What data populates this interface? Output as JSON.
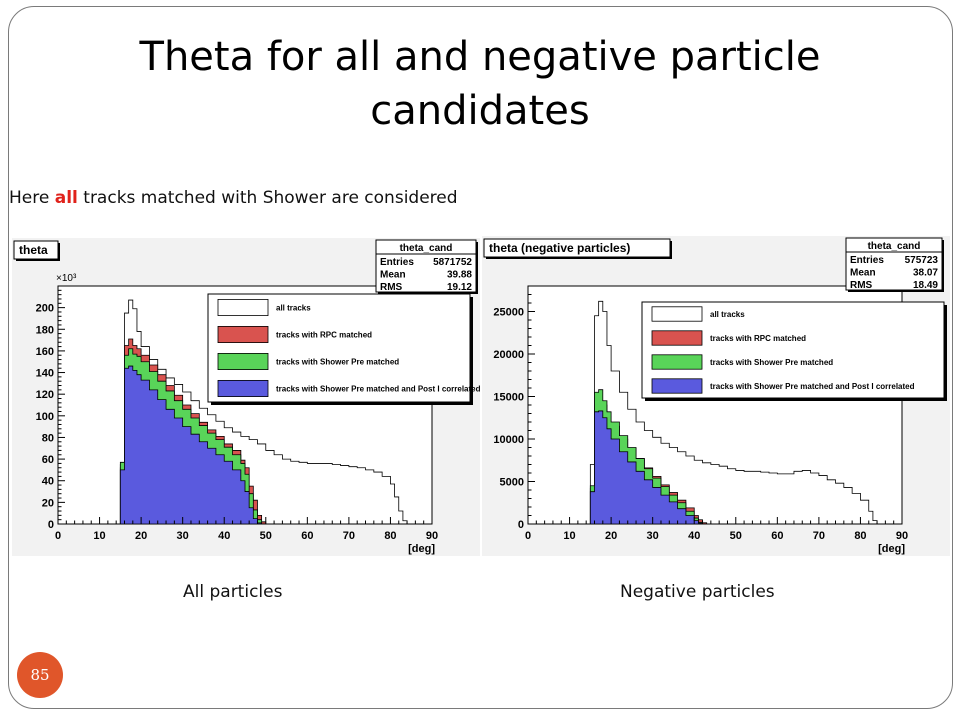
{
  "slide": {
    "title": "Theta for all and negative particle candidates",
    "subtitle_before": "Here ",
    "subtitle_highlight": "all",
    "subtitle_after": " tracks matched with Shower are considered",
    "slide_number": "85",
    "colors": {
      "accent": "#e0562a",
      "highlight": "#e0221b"
    }
  },
  "chart_data": [
    {
      "type": "area",
      "caption": "All particles",
      "title": "theta",
      "ymultiplier": "×10³",
      "xlabel": "[deg]",
      "ylabel": "",
      "xlim": [
        0,
        90
      ],
      "ylim": [
        0,
        220
      ],
      "xticks": [
        0,
        10,
        20,
        30,
        40,
        50,
        60,
        70,
        80,
        90
      ],
      "yticks": [
        0,
        20,
        40,
        60,
        80,
        100,
        120,
        140,
        160,
        180,
        200
      ],
      "stats": {
        "name": "theta_cand",
        "rows": [
          [
            "Entries",
            "5871752"
          ],
          [
            "Mean",
            "39.88"
          ],
          [
            "RMS",
            "19.12"
          ]
        ]
      },
      "series": [
        {
          "name": "all tracks",
          "color": "#ffffff",
          "points": [
            [
              0,
              0
            ],
            [
              15,
              0
            ],
            [
              15,
              52
            ],
            [
              16,
              52
            ],
            [
              16,
              195
            ],
            [
              17,
              207
            ],
            [
              18,
              199
            ],
            [
              19,
              178
            ],
            [
              20,
              164
            ],
            [
              22,
              152
            ],
            [
              24,
              143
            ],
            [
              26,
              135
            ],
            [
              28,
              129
            ],
            [
              30,
              122
            ],
            [
              32,
              114
            ],
            [
              34,
              107
            ],
            [
              36,
              101
            ],
            [
              38,
              95
            ],
            [
              40,
              89
            ],
            [
              42,
              85
            ],
            [
              44,
              81
            ],
            [
              46,
              78
            ],
            [
              48,
              74
            ],
            [
              50,
              68
            ],
            [
              52,
              64
            ],
            [
              54,
              60
            ],
            [
              56,
              58
            ],
            [
              58,
              57
            ],
            [
              60,
              56
            ],
            [
              62,
              56
            ],
            [
              64,
              56
            ],
            [
              66,
              55
            ],
            [
              68,
              54
            ],
            [
              70,
              53
            ],
            [
              72,
              52
            ],
            [
              74,
              50
            ],
            [
              76,
              48
            ],
            [
              78,
              44
            ],
            [
              80,
              37
            ],
            [
              81,
              25
            ],
            [
              82,
              12
            ],
            [
              83,
              3
            ],
            [
              84,
              0
            ],
            [
              90,
              0
            ]
          ]
        },
        {
          "name": "tracks with RPC matched",
          "color": "#d9534f",
          "points": [
            [
              0,
              0
            ],
            [
              15,
              0
            ],
            [
              15,
              55
            ],
            [
              16,
              55
            ],
            [
              16,
              165
            ],
            [
              17,
              171
            ],
            [
              18,
              165
            ],
            [
              19,
              162
            ],
            [
              20,
              156
            ],
            [
              22,
              147
            ],
            [
              24,
              138
            ],
            [
              26,
              128
            ],
            [
              28,
              119
            ],
            [
              30,
              110
            ],
            [
              32,
              102
            ],
            [
              34,
              94
            ],
            [
              36,
              87
            ],
            [
              38,
              81
            ],
            [
              40,
              74
            ],
            [
              42,
              68
            ],
            [
              44,
              59
            ],
            [
              45,
              52
            ],
            [
              46,
              35
            ],
            [
              47,
              22
            ],
            [
              48,
              8
            ],
            [
              49,
              2
            ],
            [
              50,
              0
            ],
            [
              90,
              0
            ]
          ]
        },
        {
          "name": "tracks with Shower Pre matched",
          "color": "#59d459",
          "points": [
            [
              0,
              0
            ],
            [
              15,
              0
            ],
            [
              15,
              57
            ],
            [
              16,
              57
            ],
            [
              16,
              156
            ],
            [
              17,
              162
            ],
            [
              18,
              157
            ],
            [
              19,
              155
            ],
            [
              20,
              150
            ],
            [
              22,
              141
            ],
            [
              24,
              132
            ],
            [
              26,
              123
            ],
            [
              28,
              114
            ],
            [
              30,
              106
            ],
            [
              32,
              98
            ],
            [
              34,
              91
            ],
            [
              36,
              84
            ],
            [
              38,
              78
            ],
            [
              40,
              71
            ],
            [
              42,
              64
            ],
            [
              44,
              56
            ],
            [
              45,
              46
            ],
            [
              46,
              28
            ],
            [
              47,
              13
            ],
            [
              48,
              4
            ],
            [
              49,
              0
            ],
            [
              90,
              0
            ]
          ]
        },
        {
          "name": "tracks with Shower Pre matched and Post I correlated",
          "color": "#5a5ade",
          "points": [
            [
              0,
              0
            ],
            [
              15,
              0
            ],
            [
              15,
              50
            ],
            [
              16,
              50
            ],
            [
              16,
              144
            ],
            [
              17,
              146
            ],
            [
              18,
              142
            ],
            [
              19,
              138
            ],
            [
              20,
              133
            ],
            [
              22,
              124
            ],
            [
              24,
              115
            ],
            [
              26,
              106
            ],
            [
              28,
              98
            ],
            [
              30,
              90
            ],
            [
              32,
              83
            ],
            [
              34,
              76
            ],
            [
              36,
              70
            ],
            [
              38,
              64
            ],
            [
              40,
              58
            ],
            [
              42,
              50
            ],
            [
              44,
              40
            ],
            [
              45,
              30
            ],
            [
              46,
              15
            ],
            [
              47,
              5
            ],
            [
              48,
              1
            ],
            [
              49,
              0
            ],
            [
              90,
              0
            ]
          ]
        }
      ]
    },
    {
      "type": "area",
      "caption": "Negative particles",
      "title": "theta (negative particles)",
      "ymultiplier": "",
      "xlabel": "[deg]",
      "ylabel": "",
      "xlim": [
        0,
        90
      ],
      "ylim": [
        0,
        28000
      ],
      "xticks": [
        0,
        10,
        20,
        30,
        40,
        50,
        60,
        70,
        80,
        90
      ],
      "yticks": [
        0,
        5000,
        10000,
        15000,
        20000,
        25000
      ],
      "stats": {
        "name": "theta_cand",
        "rows": [
          [
            "Entries",
            "575723"
          ],
          [
            "Mean",
            "38.07"
          ],
          [
            "RMS",
            "18.49"
          ]
        ]
      },
      "series": [
        {
          "name": "all tracks",
          "color": "#ffffff",
          "points": [
            [
              0,
              0
            ],
            [
              15,
              0
            ],
            [
              15,
              7000
            ],
            [
              16,
              7000
            ],
            [
              16,
              24500
            ],
            [
              17,
              26200
            ],
            [
              18,
              25000
            ],
            [
              19,
              21000
            ],
            [
              20,
              18000
            ],
            [
              22,
              15500
            ],
            [
              24,
              13500
            ],
            [
              26,
              12000
            ],
            [
              28,
              11000
            ],
            [
              30,
              10200
            ],
            [
              32,
              9500
            ],
            [
              34,
              9000
            ],
            [
              36,
              8500
            ],
            [
              38,
              8000
            ],
            [
              40,
              7500
            ],
            [
              42,
              7200
            ],
            [
              44,
              7000
            ],
            [
              46,
              6800
            ],
            [
              48,
              6500
            ],
            [
              50,
              6300
            ],
            [
              52,
              6200
            ],
            [
              54,
              6200
            ],
            [
              56,
              6100
            ],
            [
              58,
              6000
            ],
            [
              60,
              5900
            ],
            [
              62,
              5900
            ],
            [
              64,
              6200
            ],
            [
              66,
              6300
            ],
            [
              68,
              6000
            ],
            [
              70,
              5700
            ],
            [
              72,
              5200
            ],
            [
              74,
              4800
            ],
            [
              76,
              4300
            ],
            [
              78,
              3600
            ],
            [
              80,
              2800
            ],
            [
              82,
              1500
            ],
            [
              83,
              400
            ],
            [
              84,
              0
            ],
            [
              90,
              0
            ]
          ]
        },
        {
          "name": "tracks with RPC matched",
          "color": "#d9534f",
          "points": [
            [
              0,
              0
            ],
            [
              15,
              0
            ],
            [
              15,
              4200
            ],
            [
              16,
              4200
            ],
            [
              16,
              14000
            ],
            [
              17,
              14500
            ],
            [
              18,
              14000
            ],
            [
              19,
              12800
            ],
            [
              20,
              11500
            ],
            [
              22,
              10000
            ],
            [
              24,
              8900
            ],
            [
              26,
              7700
            ],
            [
              28,
              6600
            ],
            [
              30,
              5600
            ],
            [
              32,
              4600
            ],
            [
              34,
              3700
            ],
            [
              36,
              2800
            ],
            [
              38,
              1900
            ],
            [
              40,
              1000
            ],
            [
              41,
              500
            ],
            [
              42,
              150
            ],
            [
              43,
              0
            ],
            [
              90,
              0
            ]
          ]
        },
        {
          "name": "tracks with Shower Pre matched",
          "color": "#59d459",
          "points": [
            [
              0,
              0
            ],
            [
              15,
              0
            ],
            [
              15,
              4500
            ],
            [
              16,
              4500
            ],
            [
              16,
              15500
            ],
            [
              17,
              15800
            ],
            [
              18,
              14500
            ],
            [
              19,
              13200
            ],
            [
              20,
              12000
            ],
            [
              22,
              10400
            ],
            [
              24,
              9000
            ],
            [
              26,
              7700
            ],
            [
              28,
              6500
            ],
            [
              30,
              5400
            ],
            [
              32,
              4400
            ],
            [
              34,
              3400
            ],
            [
              36,
              2500
            ],
            [
              38,
              1500
            ],
            [
              40,
              700
            ],
            [
              41,
              200
            ],
            [
              42,
              0
            ],
            [
              90,
              0
            ]
          ]
        },
        {
          "name": "tracks with Shower Pre matched and Post I correlated",
          "color": "#5a5ade",
          "points": [
            [
              0,
              0
            ],
            [
              15,
              0
            ],
            [
              15,
              3800
            ],
            [
              16,
              3800
            ],
            [
              16,
              13200
            ],
            [
              17,
              13300
            ],
            [
              18,
              12500
            ],
            [
              19,
              11200
            ],
            [
              20,
              10000
            ],
            [
              22,
              8500
            ],
            [
              24,
              7300
            ],
            [
              26,
              6200
            ],
            [
              28,
              5200
            ],
            [
              30,
              4300
            ],
            [
              32,
              3400
            ],
            [
              34,
              2600
            ],
            [
              36,
              1800
            ],
            [
              38,
              1000
            ],
            [
              40,
              400
            ],
            [
              41,
              100
            ],
            [
              42,
              0
            ],
            [
              90,
              0
            ]
          ]
        }
      ]
    }
  ]
}
